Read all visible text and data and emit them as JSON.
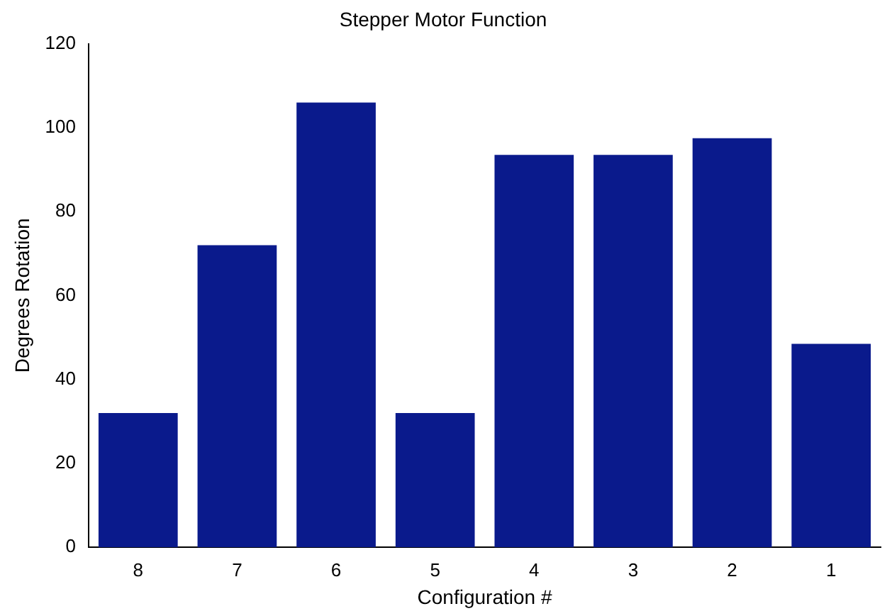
{
  "chart_data": {
    "type": "bar",
    "title": "Stepper Motor Function",
    "xlabel": "Configuration #",
    "ylabel": "Degrees Rotation",
    "categories": [
      "8",
      "7",
      "6",
      "5",
      "4",
      "3",
      "2",
      "1"
    ],
    "values": [
      32,
      72,
      106,
      32,
      93.5,
      93.5,
      97.5,
      48.5
    ],
    "color": "#0a1a8c",
    "ylim": [
      0,
      120
    ],
    "yticks": [
      0,
      20,
      40,
      60,
      80,
      100,
      120
    ],
    "grid": false,
    "legend": false
  }
}
